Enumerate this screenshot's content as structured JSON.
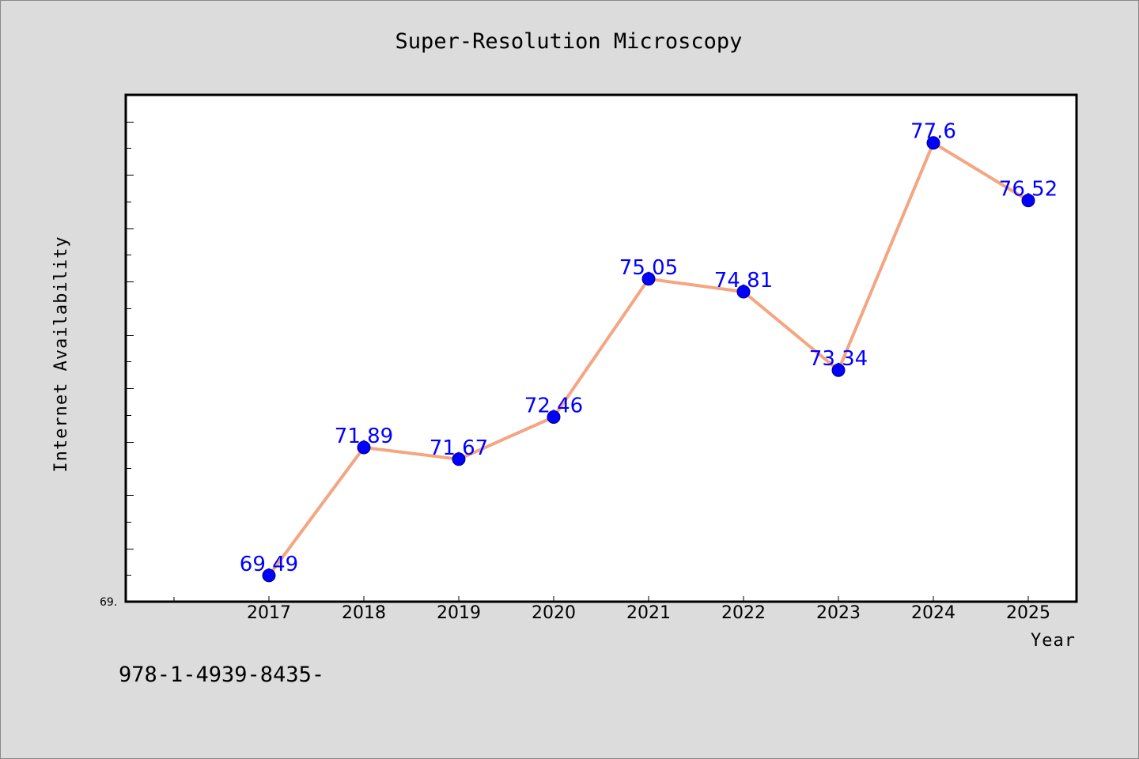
{
  "chart_data": {
    "type": "line",
    "title": "Super-Resolution Microscopy",
    "xlabel": "Year",
    "ylabel": "Internet Availability",
    "x": [
      "2017",
      "2018",
      "2019",
      "2020",
      "2021",
      "2022",
      "2023",
      "2024",
      "2025"
    ],
    "values": [
      69.49,
      71.89,
      71.67,
      72.46,
      75.05,
      74.81,
      73.34,
      77.6,
      76.52
    ],
    "data_labels": [
      "69.49",
      "71.89",
      "71.67",
      "72.46",
      "75.05",
      "74.81",
      "73.34",
      "77.6",
      "76.52"
    ],
    "ylim": [
      69.0,
      78.5
    ],
    "y_tick_label": "69.",
    "grid": false,
    "line_color": "#f4a582",
    "marker_color": "#0000ff",
    "label_color": "#0000ff",
    "plot_background": "#ffffff",
    "page_background": "#dcdcdc"
  },
  "footer_text": "978-1-4939-8435-"
}
